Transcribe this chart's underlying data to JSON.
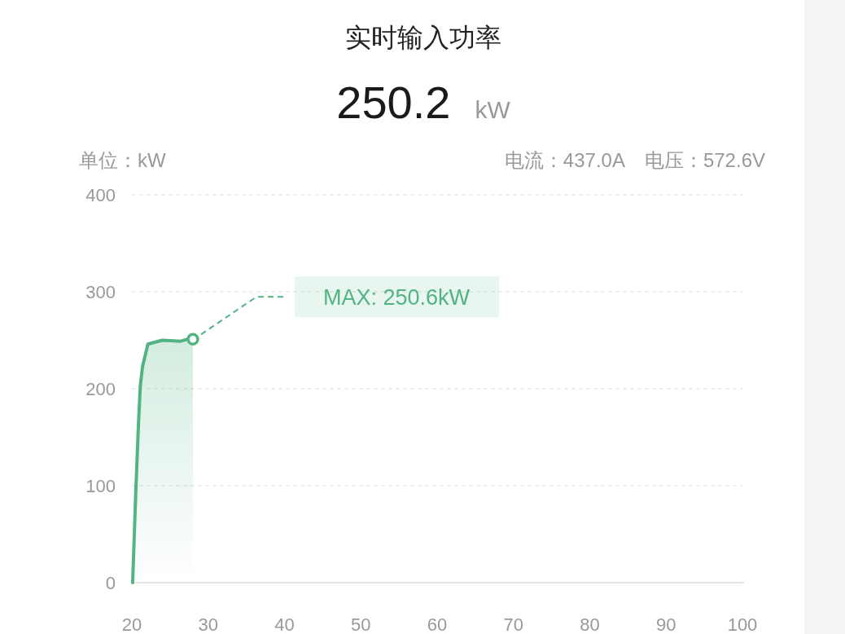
{
  "chart_data": {
    "type": "area",
    "title": "实时输入功率",
    "subtitle": "250.2 kW",
    "ylabel": "单位：kW",
    "annotations": [
      "电流：437.0A",
      "电压：572.6V",
      "MAX: 250.6kW"
    ],
    "x": [
      20.1,
      20.5,
      20.85,
      21.1,
      21.4,
      22.1,
      24.0,
      26.4,
      27.25,
      28.0
    ],
    "series": [
      {
        "color": "#52b483",
        "values": [
          0,
          91,
          161,
          203,
          223,
          246,
          250,
          249,
          251,
          251
        ]
      }
    ],
    "xlim": [
      20,
      100
    ],
    "xticks": [
      20,
      30,
      40,
      50,
      60,
      70,
      80,
      90,
      100
    ],
    "ylim": [
      0,
      400
    ],
    "yticks": [
      0,
      100,
      200,
      300,
      400
    ],
    "grid": "y"
  }
}
